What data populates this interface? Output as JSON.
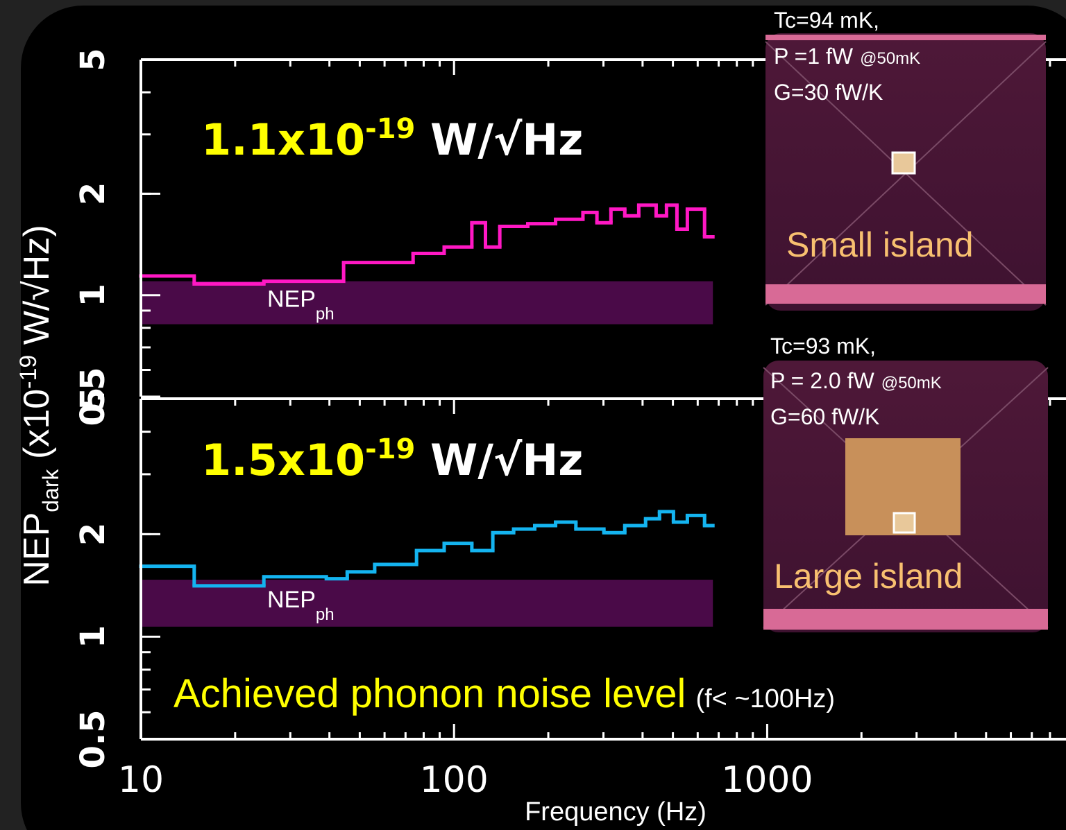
{
  "slide": {
    "y_label": {
      "main": "NEP",
      "sub": "dark",
      "rest": " (x10",
      "exp": "-19",
      "unit": " W/√Hz)"
    },
    "x_label": "Frequency (Hz)",
    "caption": {
      "main": "Achieved phonon noise level",
      "note": "(f< ~100Hz)"
    },
    "insets": [
      {
        "tc": "Tc=94 mK,",
        "power": "P =1 fW",
        "condition": "@50mK",
        "conductance": "G=30 fW/K",
        "label": "Small island"
      },
      {
        "tc": "Tc=93 mK,",
        "power": "P = 2.0 fW",
        "condition": "@50mK",
        "conductance": "G=60  fW/K",
        "label": "Large island"
      }
    ]
  },
  "chart_data": [
    {
      "type": "line",
      "step": true,
      "log_x": true,
      "log_y": true,
      "color": "#ff18c4",
      "annotation": {
        "mantissa": "1.1x10",
        "exponent": "-19",
        "unit": " W/√Hz"
      },
      "band": [
        0.82,
        1.1
      ],
      "band_label": {
        "main": "NEP",
        "sub": "ph"
      },
      "x": [
        10,
        14.8,
        24.7,
        44.4,
        74,
        93,
        114,
        126,
        140,
        172,
        211,
        258,
        286,
        317,
        351,
        389,
        442,
        477,
        515,
        556,
        631
      ],
      "values": [
        1.14,
        1.08,
        1.1,
        1.25,
        1.33,
        1.39,
        1.64,
        1.39,
        1.6,
        1.63,
        1.68,
        1.76,
        1.64,
        1.8,
        1.72,
        1.85,
        1.72,
        1.85,
        1.57,
        1.8,
        1.49
      ],
      "xlim": [
        10,
        9000
      ],
      "xticks": [
        10,
        100,
        1000
      ],
      "ylim": [
        0.5,
        5
      ],
      "yticks": [
        0.5,
        1,
        2,
        5
      ]
    },
    {
      "type": "line",
      "step": true,
      "log_x": true,
      "log_y": true,
      "color": "#14b4f0",
      "annotation": {
        "mantissa": "1.5x10",
        "exponent": "-19",
        "unit": " W/√Hz"
      },
      "band": [
        1.07,
        1.47
      ],
      "band_label": {
        "main": "NEP",
        "sub": "ph"
      },
      "x": [
        10,
        14.8,
        24.7,
        39.1,
        45.6,
        55.8,
        75.9,
        93,
        114,
        133,
        155,
        181,
        211,
        245,
        301,
        351,
        409,
        453,
        502,
        556,
        631
      ],
      "values": [
        1.61,
        1.41,
        1.5,
        1.48,
        1.55,
        1.63,
        1.79,
        1.88,
        1.79,
        2.02,
        2.07,
        2.12,
        2.17,
        2.07,
        2.02,
        2.12,
        2.22,
        2.33,
        2.17,
        2.27,
        2.12
      ],
      "xlim": [
        10,
        9000
      ],
      "xticks": [
        10,
        100,
        1000
      ],
      "ylim": [
        0.5,
        5
      ],
      "yticks": [
        0.5,
        1,
        2,
        5
      ]
    }
  ]
}
